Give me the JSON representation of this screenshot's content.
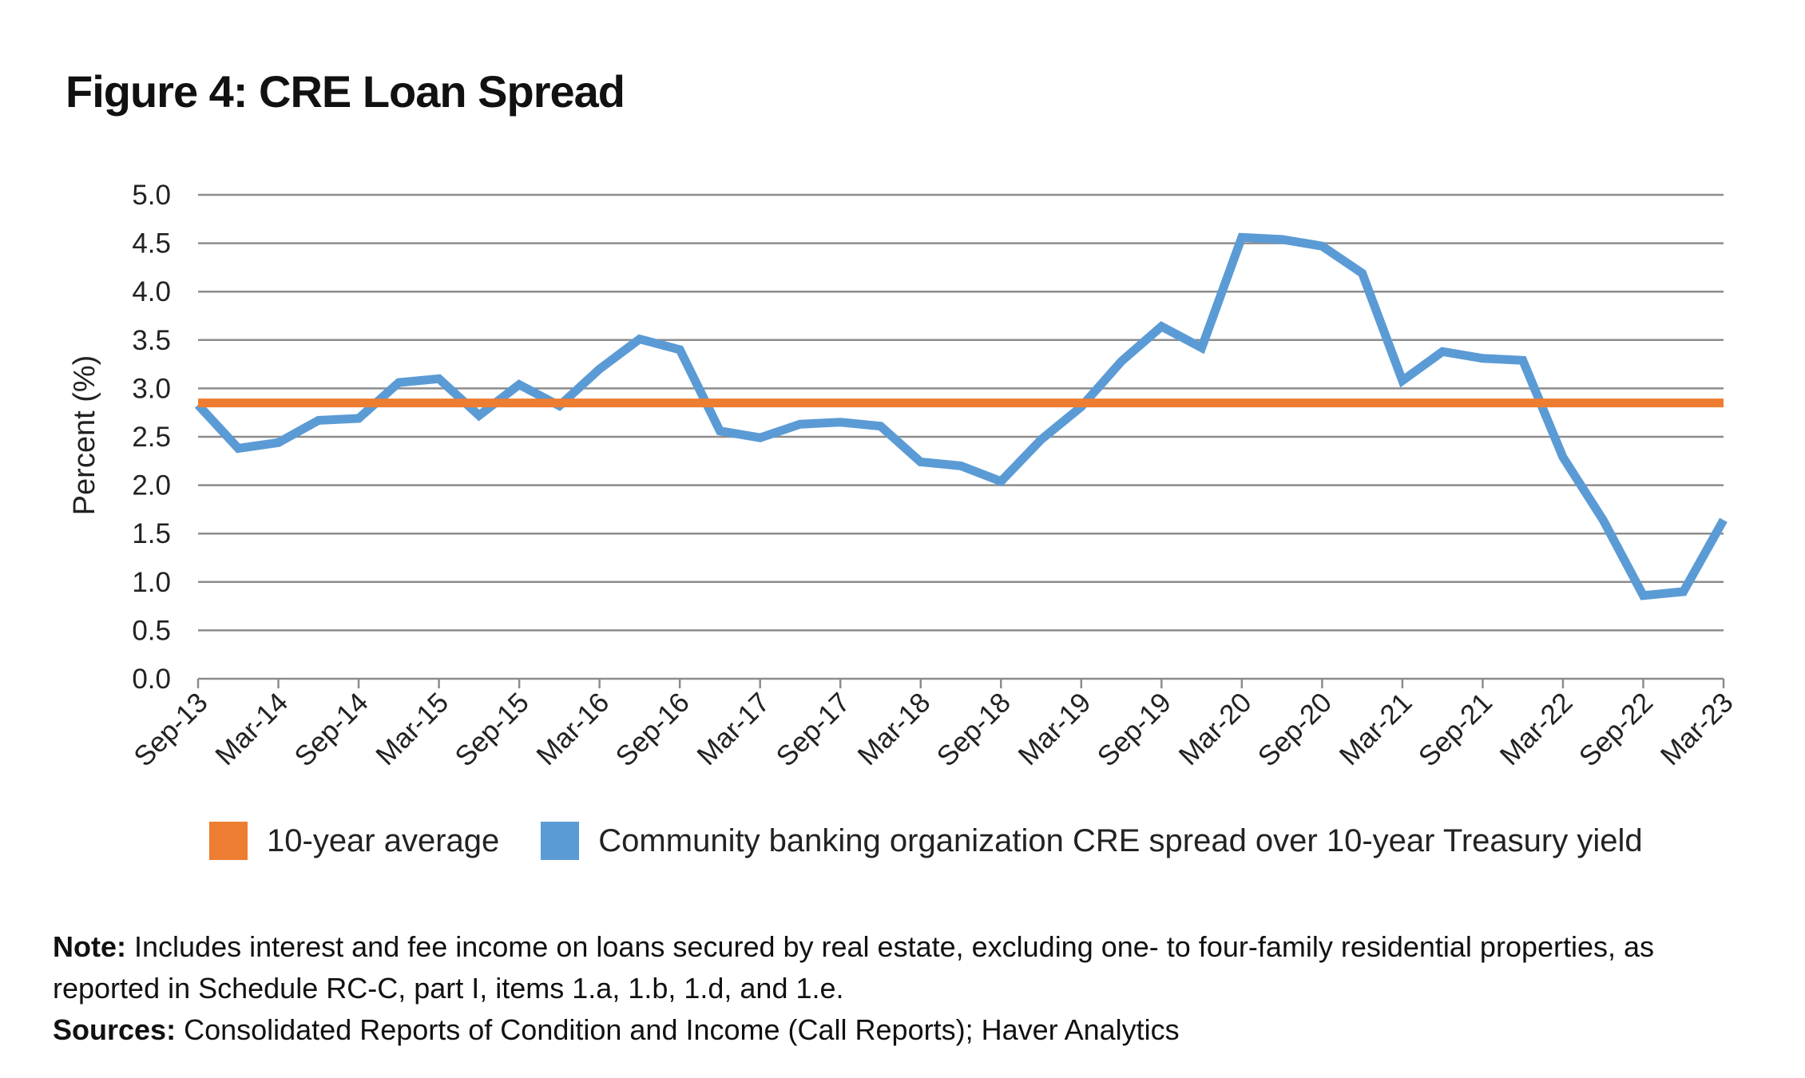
{
  "title": "Figure 4: CRE Loan Spread",
  "chart_data": {
    "type": "line",
    "ylabel": "Percent (%)",
    "xlabel": "",
    "ylim": [
      0,
      5
    ],
    "yticks": [
      "0.0",
      "0.5",
      "1.0",
      "1.5",
      "2.0",
      "2.5",
      "3.0",
      "3.5",
      "4.0",
      "4.5",
      "5.0"
    ],
    "x_tick_labels": [
      "Sep-13",
      "Mar-14",
      "Sep-14",
      "Mar-15",
      "Sep-15",
      "Mar-16",
      "Sep-16",
      "Mar-17",
      "Sep-17",
      "Mar-18",
      "Sep-18",
      "Mar-19",
      "Sep-19",
      "Mar-20",
      "Sep-20",
      "Mar-21",
      "Sep-21",
      "Mar-22",
      "Sep-22",
      "Mar-23"
    ],
    "x": [
      "Sep-13",
      "Dec-13",
      "Mar-14",
      "Jun-14",
      "Sep-14",
      "Dec-14",
      "Mar-15",
      "Jun-15",
      "Sep-15",
      "Dec-15",
      "Mar-16",
      "Jun-16",
      "Sep-16",
      "Dec-16",
      "Mar-17",
      "Jun-17",
      "Sep-17",
      "Dec-17",
      "Mar-18",
      "Jun-18",
      "Sep-18",
      "Dec-18",
      "Mar-19",
      "Jun-19",
      "Sep-19",
      "Dec-19",
      "Mar-20",
      "Jun-20",
      "Sep-20",
      "Dec-20",
      "Mar-21",
      "Jun-21",
      "Sep-21",
      "Dec-21",
      "Mar-22",
      "Jun-22",
      "Sep-22",
      "Dec-22",
      "Mar-23"
    ],
    "grid": true,
    "legend_placement": "bottom",
    "series": [
      {
        "name": "10-year average",
        "color": "#ED7D31",
        "values": [
          2.85,
          2.85,
          2.85,
          2.85,
          2.85,
          2.85,
          2.85,
          2.85,
          2.85,
          2.85,
          2.85,
          2.85,
          2.85,
          2.85,
          2.85,
          2.85,
          2.85,
          2.85,
          2.85,
          2.85,
          2.85,
          2.85,
          2.85,
          2.85,
          2.85,
          2.85,
          2.85,
          2.85,
          2.85,
          2.85,
          2.85,
          2.85,
          2.85,
          2.85,
          2.85,
          2.85,
          2.85,
          2.85,
          2.85
        ]
      },
      {
        "name": "Community banking organization CRE spread over 10-year Treasury yield",
        "color": "#5B9BD5",
        "values": [
          2.83,
          2.38,
          2.44,
          2.67,
          2.69,
          3.06,
          3.1,
          2.72,
          3.04,
          2.82,
          3.2,
          3.51,
          3.4,
          2.56,
          2.49,
          2.63,
          2.65,
          2.61,
          2.24,
          2.2,
          2.04,
          2.47,
          2.81,
          3.28,
          3.64,
          3.42,
          4.56,
          4.54,
          4.47,
          4.19,
          3.08,
          3.38,
          3.31,
          3.29,
          2.29,
          1.64,
          0.86,
          0.9,
          1.64
        ]
      }
    ]
  },
  "notes": {
    "note_label": "Note:",
    "note_text": " Includes interest and fee income on loans secured by real estate, excluding one- to four-family residential properties, as reported in Schedule RC-C, part I, items 1.a, 1.b, 1.d, and 1.e.",
    "sources_label": "Sources:",
    "sources_text": " Consolidated Reports of Condition and Income (Call Reports); Haver Analytics"
  }
}
